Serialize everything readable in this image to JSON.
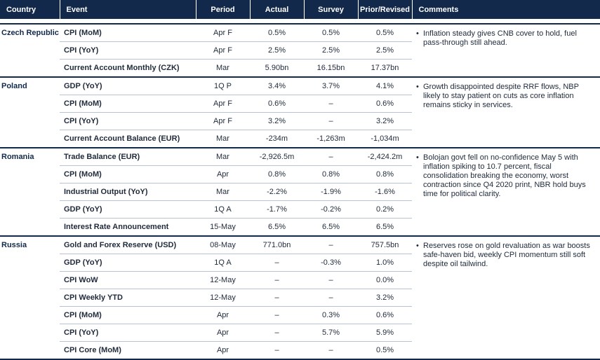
{
  "headers": {
    "country": "Country",
    "event": "Event",
    "period": "Period",
    "actual": "Actual",
    "survey": "Survey",
    "prior": "Prior/Revised",
    "comments": "Comments"
  },
  "groups": [
    {
      "country": "Czech Republic",
      "comment": "Inflation steady gives CNB cover to hold, fuel pass-through still ahead.",
      "rows": [
        {
          "event": "CPI (MoM)",
          "period": "Apr F",
          "actual": "0.5%",
          "survey": "0.5%",
          "prior": "0.5%"
        },
        {
          "event": "CPI (YoY)",
          "period": "Apr F",
          "actual": "2.5%",
          "survey": "2.5%",
          "prior": "2.5%"
        },
        {
          "event": "Current Account Monthly (CZK)",
          "period": "Mar",
          "actual": "5.90bn",
          "survey": "16.15bn",
          "prior": "17.37bn"
        }
      ]
    },
    {
      "country": "Poland",
      "comment": "Growth disappointed despite RRF flows, NBP likely to stay  patient on cuts as core inflation remains sticky in services.",
      "rows": [
        {
          "event": "GDP (YoY)",
          "period": "1Q P",
          "actual": "3.4%",
          "survey": "3.7%",
          "prior": "4.1%"
        },
        {
          "event": "CPI (MoM)",
          "period": "Apr F",
          "actual": "0.6%",
          "survey": "–",
          "prior": "0.6%"
        },
        {
          "event": "CPI (YoY)",
          "period": "Apr F",
          "actual": "3.2%",
          "survey": "–",
          "prior": "3.2%"
        },
        {
          "event": "Current Account Balance (EUR)",
          "period": "Mar",
          "actual": "-234m",
          "survey": "-1,263m",
          "prior": "-1,034m"
        }
      ]
    },
    {
      "country": "Romania",
      "comment": "Bolojan govt fell on no-confidence May 5 with inflation spiking to 10.7 percent, fiscal consolidation breaking the economy, worst contraction since Q4 2020 print, NBR hold buys time for political clarity.",
      "rows": [
        {
          "event": "Trade Balance (EUR)",
          "period": "Mar",
          "actual": "-2,926.5m",
          "survey": "–",
          "prior": "-2,424.2m"
        },
        {
          "event": "CPI (MoM)",
          "period": "Apr",
          "actual": "0.8%",
          "survey": "0.8%",
          "prior": "0.8%"
        },
        {
          "event": "Industrial Output (YoY)",
          "period": "Mar",
          "actual": "-2.2%",
          "survey": "-1.9%",
          "prior": "-1.6%"
        },
        {
          "event": "GDP (YoY)",
          "period": "1Q A",
          "actual": "-1.7%",
          "survey": "-0.2%",
          "prior": "0.2%"
        },
        {
          "event": "Interest Rate Announcement",
          "period": "15-May",
          "actual": "6.5%",
          "survey": "6.5%",
          "prior": "6.5%"
        }
      ]
    },
    {
      "country": "Russia",
      "comment": "Reserves rose on gold revaluation as war boosts safe-haven bid, weekly CPI momentum still soft despite oil tailwind.",
      "rows": [
        {
          "event": "Gold and Forex Reserve (USD)",
          "period": "08-May",
          "actual": "771.0bn",
          "survey": "–",
          "prior": "757.5bn"
        },
        {
          "event": "GDP (YoY)",
          "period": "1Q A",
          "actual": "–",
          "survey": "-0.3%",
          "prior": "1.0%"
        },
        {
          "event": "CPI WoW",
          "period": "12-May",
          "actual": "–",
          "survey": "–",
          "prior": "0.0%"
        },
        {
          "event": "CPI Weekly YTD",
          "period": "12-May",
          "actual": "–",
          "survey": "–",
          "prior": "3.2%"
        },
        {
          "event": "CPI (MoM)",
          "period": "Apr",
          "actual": "–",
          "survey": "0.3%",
          "prior": "0.6%"
        },
        {
          "event": "CPI (YoY)",
          "period": "Apr",
          "actual": "–",
          "survey": "5.7%",
          "prior": "5.9%"
        },
        {
          "event": "CPI Core (MoM)",
          "period": "Apr",
          "actual": "–",
          "survey": "–",
          "prior": "0.5%"
        }
      ]
    }
  ]
}
